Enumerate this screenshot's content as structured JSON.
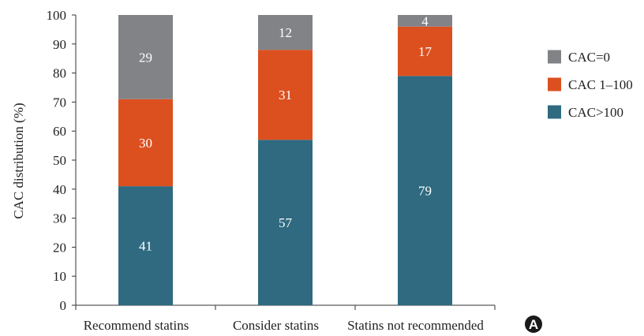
{
  "chart_data": {
    "type": "bar",
    "stacked": true,
    "categories": [
      "Recommend statins",
      "Consider statins",
      "Statins not recommended"
    ],
    "series": [
      {
        "name": "CAC>100",
        "values": [
          41,
          57,
          79
        ],
        "color": "#2f6a80"
      },
      {
        "name": "CAC 1–100",
        "values": [
          30,
          31,
          17
        ],
        "color": "#dc5020"
      },
      {
        "name": "CAC=0",
        "values": [
          29,
          12,
          4
        ],
        "color": "#828387"
      }
    ],
    "legend_order": [
      "CAC=0",
      "CAC 1–100",
      "CAC>100"
    ],
    "ylabel": "CAC distribution (%)",
    "ylim": [
      0,
      100
    ],
    "yticks": [
      0,
      10,
      20,
      30,
      40,
      50,
      60,
      70,
      80,
      90,
      100
    ],
    "grid": false,
    "legend_position": "right"
  },
  "panel_label": "A"
}
